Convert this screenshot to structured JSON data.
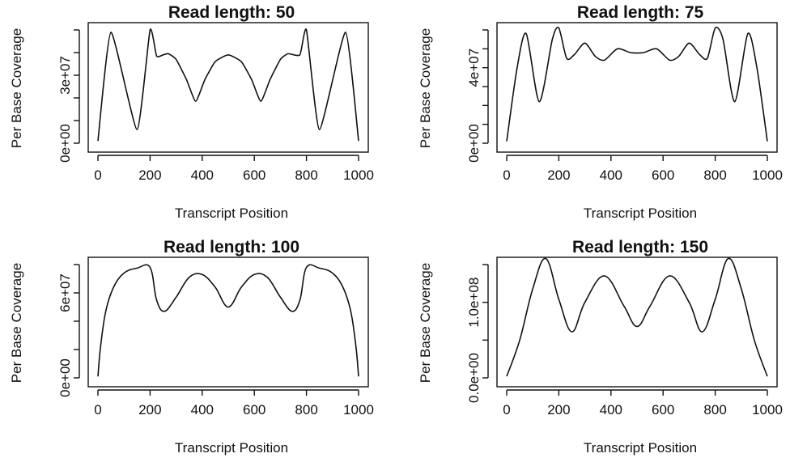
{
  "chart_data": [
    {
      "type": "line",
      "title": "Read length: 50",
      "xlabel": "Transcript Position",
      "ylabel": "Per Base Coverage",
      "xlim": [
        0,
        1000
      ],
      "ylim": [
        0,
        50000000
      ],
      "x_ticks": [
        0,
        200,
        400,
        600,
        800,
        1000
      ],
      "x_tick_labels": [
        "0",
        "200",
        "400",
        "600",
        "800",
        "1000"
      ],
      "y_ticks": [
        0,
        10000000,
        20000000,
        30000000,
        40000000,
        50000000
      ],
      "y_tick_labels": [
        "0e+00",
        "",
        "",
        "3e+07",
        "",
        ""
      ],
      "grid": false,
      "series": [
        {
          "x": [
            0,
            50,
            150,
            200,
            225,
            250,
            270,
            300,
            340,
            375,
            410,
            450,
            500,
            550,
            590,
            625,
            660,
            700,
            730,
            775,
            800,
            850,
            950,
            1000
          ],
          "y": [
            1000000,
            49000000,
            6000000,
            50000000,
            38500000,
            39000000,
            39500000,
            37000000,
            28000000,
            18500000,
            28000000,
            36000000,
            39000000,
            36000000,
            28000000,
            18500000,
            28000000,
            37000000,
            39500000,
            39000000,
            50000000,
            6000000,
            49000000,
            1000000
          ]
        }
      ]
    },
    {
      "type": "line",
      "title": "Read length: 75",
      "xlabel": "Transcript Position",
      "ylabel": "Per Base Coverage",
      "xlim": [
        0,
        1000
      ],
      "ylim": [
        0,
        60000000
      ],
      "x_ticks": [
        0,
        200,
        400,
        600,
        800,
        1000
      ],
      "x_tick_labels": [
        "0",
        "200",
        "400",
        "600",
        "800",
        "1000"
      ],
      "y_ticks": [
        0,
        10000000,
        20000000,
        30000000,
        40000000,
        50000000,
        60000000
      ],
      "y_tick_labels": [
        "0e+00",
        "",
        "",
        "",
        "4e+07",
        "",
        ""
      ],
      "grid": false,
      "series": [
        {
          "x": [
            0,
            40,
            75,
            125,
            175,
            200,
            230,
            260,
            300,
            340,
            375,
            425,
            475,
            525,
            575,
            625,
            660,
            700,
            740,
            770,
            800,
            830,
            875,
            925,
            960,
            1000
          ],
          "y": [
            1000000,
            40000000,
            58000000,
            22000000,
            55000000,
            61000000,
            45000000,
            47000000,
            53000000,
            46000000,
            44000000,
            50000000,
            48000000,
            48000000,
            50000000,
            44000000,
            46000000,
            53000000,
            47000000,
            45000000,
            61000000,
            55000000,
            22000000,
            58000000,
            40000000,
            1000000
          ]
        }
      ]
    },
    {
      "type": "line",
      "title": "Read length: 100",
      "xlabel": "Transcript Position",
      "ylabel": "Per Base Coverage",
      "xlim": [
        0,
        1000
      ],
      "ylim": [
        0,
        80000000
      ],
      "x_ticks": [
        0,
        200,
        400,
        600,
        800,
        1000
      ],
      "x_tick_labels": [
        "0",
        "200",
        "400",
        "600",
        "800",
        "1000"
      ],
      "y_ticks": [
        0,
        20000000,
        40000000,
        60000000,
        80000000
      ],
      "y_tick_labels": [
        "0e+00",
        "",
        "",
        "6e+07",
        ""
      ],
      "grid": false,
      "series": [
        {
          "x": [
            0,
            10,
            30,
            60,
            100,
            150,
            200,
            225,
            255,
            300,
            350,
            400,
            450,
            500,
            550,
            600,
            650,
            700,
            745,
            775,
            800,
            850,
            900,
            940,
            970,
            990,
            1000
          ],
          "y": [
            1000000,
            22000000,
            47000000,
            64000000,
            74000000,
            77500000,
            78000000,
            55000000,
            47000000,
            57000000,
            71000000,
            73000000,
            64000000,
            50000000,
            64000000,
            73000000,
            71000000,
            57000000,
            47000000,
            55000000,
            78000000,
            77500000,
            74000000,
            64000000,
            47000000,
            22000000,
            1000000
          ]
        }
      ]
    },
    {
      "type": "line",
      "title": "Read length: 150",
      "xlabel": "Transcript Position",
      "ylabel": "Per Base Coverage",
      "xlim": [
        0,
        1000
      ],
      "ylim": [
        0,
        150000000
      ],
      "x_ticks": [
        0,
        200,
        400,
        600,
        800,
        1000
      ],
      "x_tick_labels": [
        "0",
        "200",
        "400",
        "600",
        "800",
        "1000"
      ],
      "y_ticks": [
        0,
        50000000,
        100000000,
        150000000
      ],
      "y_tick_labels": [
        "0.0e+00",
        "",
        "1.0e+08",
        ""
      ],
      "grid": false,
      "series": [
        {
          "x": [
            0,
            50,
            100,
            150,
            200,
            250,
            300,
            375,
            450,
            500,
            550,
            625,
            700,
            750,
            800,
            850,
            900,
            950,
            1000
          ],
          "y": [
            2000000,
            50000000,
            118000000,
            158000000,
            104000000,
            61000000,
            100000000,
            135000000,
            95000000,
            68000000,
            95000000,
            135000000,
            100000000,
            61000000,
            104000000,
            158000000,
            118000000,
            50000000,
            2000000
          ]
        }
      ]
    }
  ]
}
